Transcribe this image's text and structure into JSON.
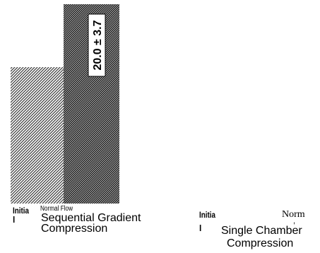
{
  "chart_data": {
    "type": "bar",
    "categories": [
      "Initial",
      "Normal Flow"
    ],
    "series": [
      {
        "name": "",
        "values": [
          null,
          20.0
        ]
      }
    ],
    "bar_annotations": [
      "",
      "20.0 ± 3.7"
    ],
    "group_labels": [
      "Sequential Gradient Compression",
      "Single Chamber Compression"
    ],
    "group_1": {
      "initial_label_line1": "Initia",
      "initial_label_line2": "l",
      "normal_label": "Normal Flow",
      "group_line1": "Sequential Gradient",
      "group_line2": "Compression"
    },
    "group_2": {
      "initial_label_line1": "Initia",
      "initial_label_line2": "l",
      "normal_label": "Norm",
      "normal_mark": ",",
      "group_line1": "Single Chamber",
      "group_line2": "Compression"
    },
    "colors": {
      "initial_bar": "#4a4a4a",
      "normal_bar": "#1e1e1e",
      "label_box": "#ffffff"
    }
  }
}
